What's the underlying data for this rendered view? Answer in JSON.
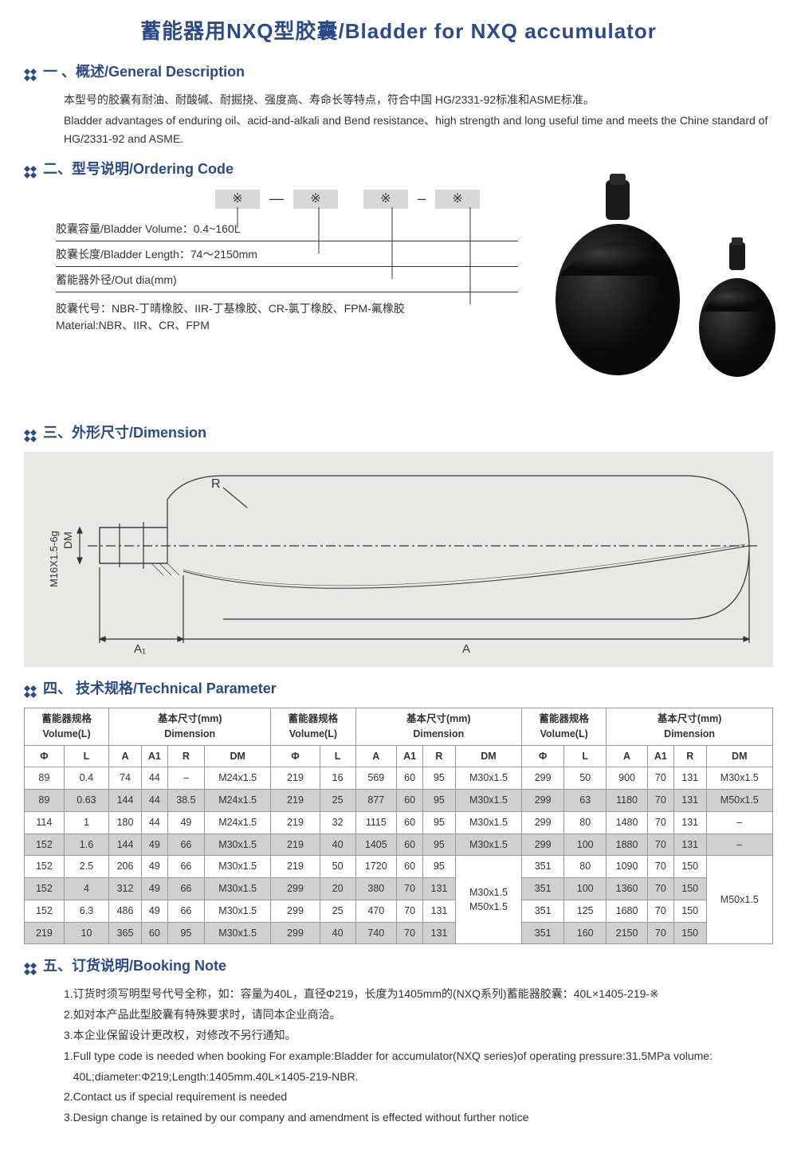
{
  "colors": {
    "primary": "#2b4a8a",
    "boxbg": "#d8d8d8",
    "diagrambg": "#e8e8e6",
    "tableshade": "#d0d0d0",
    "border": "#999999"
  },
  "title": "蓄能器用NXQ型胶囊/Bladder for NXQ accumulator",
  "section1": {
    "header": "一 、概述/General Description",
    "line1": "本型号的胶囊有耐油、耐酸碱、耐掘挠、强度高、寿命长等特点，符合中国 HG/2331-92标准和ASME标准。",
    "line2": "Bladder advantages of enduring oil、acid-and-alkali and Bend resistance、high strength and long useful time and meets the Chine standard of HG/2331-92 and ASME."
  },
  "section2": {
    "header": "二、型号说明/Ordering Code",
    "box_sym": "※",
    "dash": "—",
    "dash2": "–",
    "line1": "胶囊容量/Bladder Volume：0.4~160L",
    "line2": "胶囊长度/Bladder Length：74～2150mm",
    "line3": "蓄能器外径/Out dia(mm)",
    "line4a": "胶囊代号：NBR-丁晴橡胶、IIR-丁基橡胶、CR-氯丁橡胶、FPM-氟橡胶",
    "line4b": "Material:NBR、IIR、CR、FPM"
  },
  "section3": {
    "header": "三、外形尺寸/Dimension",
    "labels": {
      "R": "R",
      "DM": "DM",
      "thread": "M16X1.5-6g",
      "A1": "A₁",
      "A": "A"
    }
  },
  "section4": {
    "header": "四、 技术规格/Technical Parameter",
    "group_vol": "蓄能器规格\nVolume(L)",
    "group_dim": "基本尺寸(mm)\nDimension",
    "cols": [
      "Φ",
      "L",
      "A",
      "A1",
      "R",
      "DM"
    ],
    "rows": [
      [
        "89",
        "0.4",
        "74",
        "44",
        "–",
        "M24x1.5",
        "219",
        "16",
        "569",
        "60",
        "95",
        "M30x1.5",
        "299",
        "50",
        "900",
        "70",
        "131",
        "M30x1.5"
      ],
      [
        "89",
        "0.63",
        "144",
        "44",
        "38.5",
        "M24x1.5",
        "219",
        "25",
        "877",
        "60",
        "95",
        "M30x1.5",
        "299",
        "63",
        "1180",
        "70",
        "131",
        "M50x1.5"
      ],
      [
        "114",
        "1",
        "180",
        "44",
        "49",
        "M24x1.5",
        "219",
        "32",
        "1115",
        "60",
        "95",
        "M30x1.5",
        "299",
        "80",
        "1480",
        "70",
        "131",
        "–"
      ],
      [
        "152",
        "1.6",
        "144",
        "49",
        "66",
        "M30x1.5",
        "219",
        "40",
        "1405",
        "60",
        "95",
        "M30x1.5",
        "299",
        "100",
        "1880",
        "70",
        "131",
        "–"
      ],
      [
        "152",
        "2.5",
        "206",
        "49",
        "66",
        "M30x1.5",
        "219",
        "50",
        "1720",
        "60",
        "95",
        "",
        "351",
        "80",
        "1090",
        "70",
        "150",
        ""
      ],
      [
        "152",
        "4",
        "312",
        "49",
        "66",
        "M30x1.5",
        "299",
        "20",
        "380",
        "70",
        "131",
        "",
        "351",
        "100",
        "1360",
        "70",
        "150",
        ""
      ],
      [
        "152",
        "6.3",
        "486",
        "49",
        "66",
        "M30x1.5",
        "299",
        "25",
        "470",
        "70",
        "131",
        "",
        "351",
        "125",
        "1680",
        "70",
        "150",
        ""
      ],
      [
        "219",
        "10",
        "365",
        "60",
        "95",
        "M30x1.5",
        "299",
        "40",
        "740",
        "70",
        "131",
        "",
        "351",
        "160",
        "2150",
        "70",
        "150",
        ""
      ]
    ],
    "merged_mid": "M30x1.5\nM50x1.5",
    "merged_right": "M50x1.5"
  },
  "section5": {
    "header": "五、订货说明/Booking Note",
    "cn1": "1.订货时须写明型号代号全称，如：容量为40L，直径Φ219，长度为1405mm的(NXQ系列)蓄能器胶囊：40L×1405-219-※",
    "cn2": "2.如对本产品此型胶囊有特殊要求时，请同本企业商洽。",
    "cn3": "3.本企业保留设计更改权，对修改不另行通知。",
    "en1": "1.Full type code is needed when booking For example:Bladder for accumulator(NXQ series)of operating pressure:31.5MPa volume:",
    "en1b": "   40L;diameter:Φ219;Length:1405mm.40L×1405-219-NBR.",
    "en2": "2.Contact us if special requirement is needed",
    "en3": "3.Design change is retained by our company and amendment is effected without further notice"
  }
}
